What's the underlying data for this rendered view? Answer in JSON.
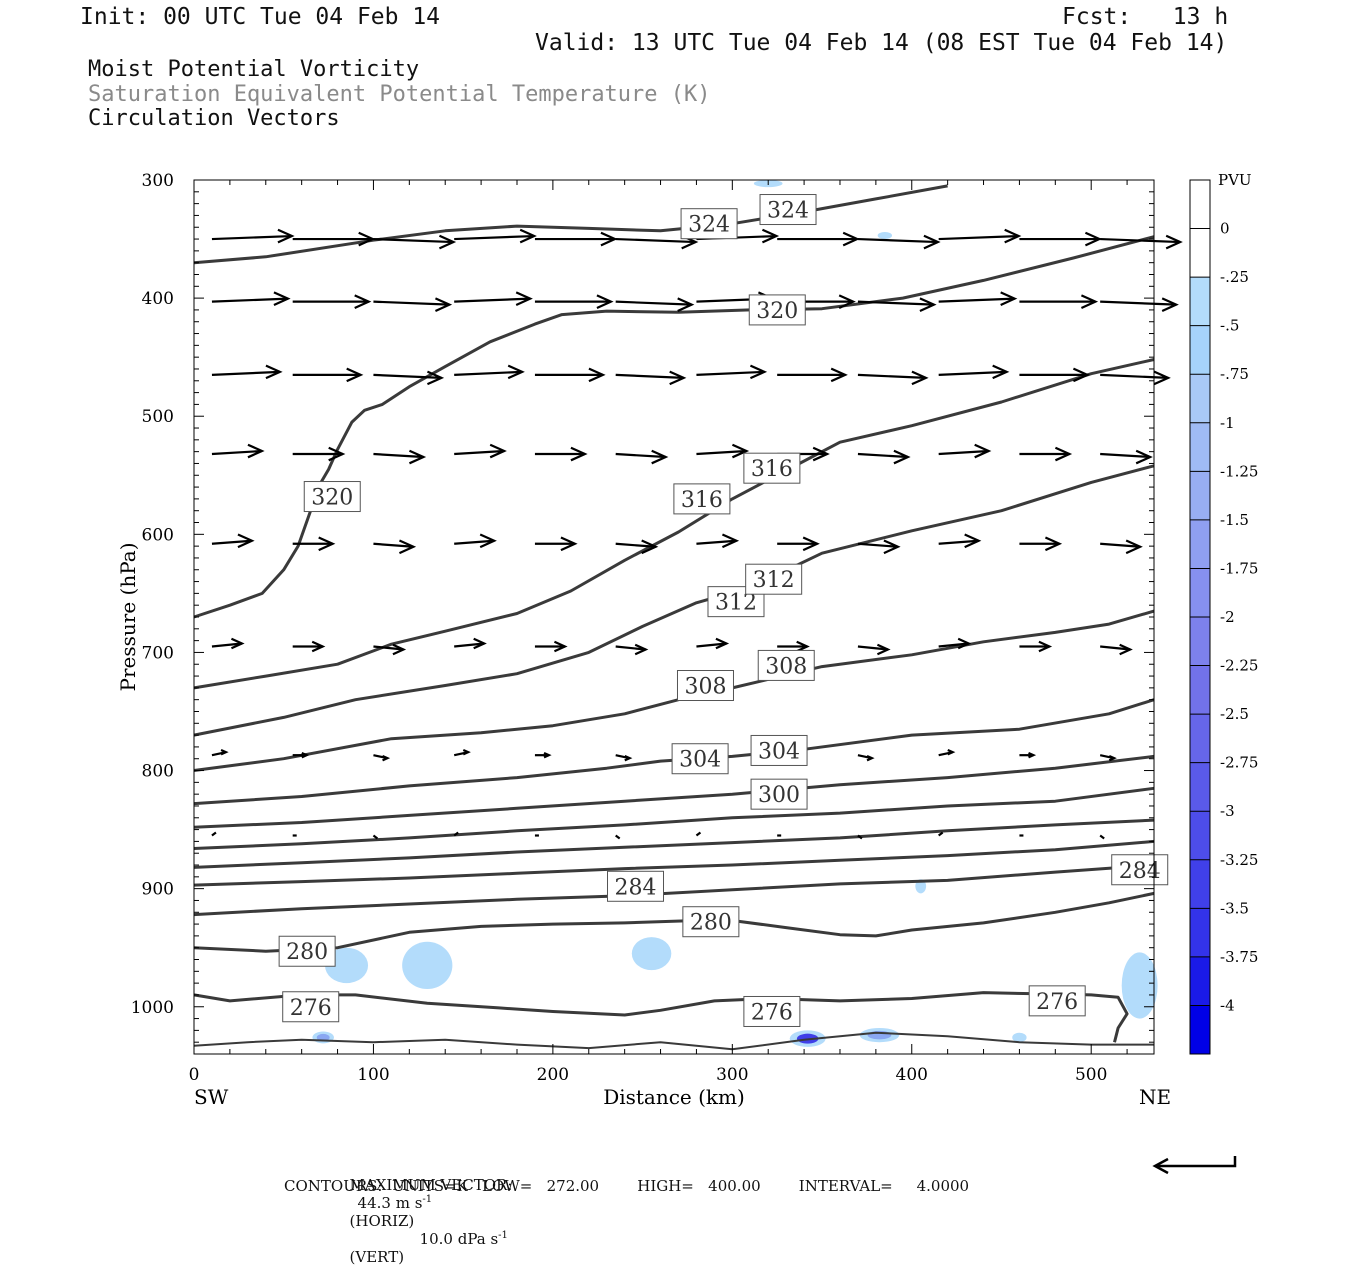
{
  "header": {
    "init": "Init: 00 UTC Tue 04 Feb 14",
    "fcst": "Fcst:   13 h",
    "valid": "Valid: 13 UTC Tue 04 Feb 14 (08 EST Tue 04 Feb 14)"
  },
  "titles": {
    "line1": "Moist Potential Vorticity",
    "line2": "Saturation Equivalent Potential Temperature (K)",
    "line3": "Circulation Vectors"
  },
  "colors": {
    "contour": "#3a3a3a",
    "pv_light": "#b3dcfb",
    "pv_mid": "#8aa7f2",
    "pv_dark": "#3f3fe8",
    "vector": "#000000"
  },
  "footer": {
    "max_vector_label": "MAXIMUM VECTOR:",
    "max_vector_horiz": "44.3 m s",
    "horiz_tag": "(HORIZ)",
    "max_vector_vert": "10.0 dPa s",
    "vert_tag": "(VERT)",
    "exp": "-1",
    "contours_line": "CONTOURS:  UNITS=K   LOW=   272.00        HIGH=   400.00        INTERVAL=     4.0000"
  },
  "chart_data": {
    "type": "cross-section",
    "xlabel": "Distance (km)",
    "ylabel": "Pressure (hPa)",
    "xlim": [
      0,
      535
    ],
    "ylim": [
      1040,
      300
    ],
    "x_ticks": [
      0,
      100,
      200,
      300,
      400,
      500
    ],
    "y_ticks": [
      300,
      400,
      500,
      600,
      700,
      800,
      900,
      1000
    ],
    "x_end_labels": [
      "SW",
      "NE"
    ],
    "colorbar": {
      "unit": "PVU",
      "labels": [
        "0",
        "-.25",
        "-.5",
        "-.75",
        "-1",
        "-1.25",
        "-1.5",
        "-1.75",
        "-2",
        "-2.25",
        "-2.5",
        "-2.75",
        "-3",
        "-3.25",
        "-3.5",
        "-3.75",
        "-4"
      ],
      "colors": [
        "#ffffff",
        "#ffffff",
        "#b3dcfb",
        "#a6d3fb",
        "#a9c9f7",
        "#9fbbf5",
        "#98aef3",
        "#8f9ff1",
        "#8690ef",
        "#7d81ec",
        "#7272ea",
        "#6666ea",
        "#5a5aea",
        "#4d4dea",
        "#4040ea",
        "#3333ea",
        "#1a1ae8",
        "#0000e6"
      ]
    },
    "contours": [
      {
        "level": "324",
        "points": [
          [
            0,
            370
          ],
          [
            40,
            365
          ],
          [
            100,
            351
          ],
          [
            140,
            343
          ],
          [
            180,
            339
          ],
          [
            220,
            341
          ],
          [
            260,
            343
          ],
          [
            300,
            337
          ],
          [
            340,
            327
          ],
          [
            380,
            316
          ],
          [
            420,
            305
          ]
        ],
        "labels": [
          [
            272,
            337
          ],
          [
            316,
            325
          ]
        ]
      },
      {
        "level": "320",
        "points": [
          [
            0,
            670
          ],
          [
            20,
            660
          ],
          [
            38,
            650
          ],
          [
            50,
            630
          ],
          [
            58,
            610
          ],
          [
            65,
            580
          ],
          [
            70,
            558
          ],
          [
            75,
            545
          ],
          [
            80,
            528
          ],
          [
            88,
            505
          ],
          [
            95,
            495
          ],
          [
            105,
            490
          ],
          [
            120,
            475
          ],
          [
            140,
            458
          ],
          [
            165,
            437
          ],
          [
            190,
            422
          ],
          [
            205,
            414
          ],
          [
            230,
            411
          ],
          [
            270,
            412
          ],
          [
            310,
            410
          ],
          [
            350,
            409
          ],
          [
            395,
            400
          ],
          [
            440,
            385
          ],
          [
            490,
            366
          ],
          [
            535,
            348
          ]
        ],
        "labels": [
          [
            62,
            568
          ],
          [
            310,
            410
          ]
        ]
      },
      {
        "level": "316",
        "points": [
          [
            0,
            730
          ],
          [
            40,
            720
          ],
          [
            80,
            710
          ],
          [
            110,
            693
          ],
          [
            140,
            682
          ],
          [
            180,
            667
          ],
          [
            210,
            648
          ],
          [
            240,
            622
          ],
          [
            270,
            598
          ],
          [
            300,
            570
          ],
          [
            330,
            546
          ],
          [
            360,
            522
          ],
          [
            400,
            508
          ],
          [
            450,
            488
          ],
          [
            500,
            464
          ],
          [
            535,
            452
          ]
        ],
        "labels": [
          [
            268,
            570
          ],
          [
            307,
            544
          ]
        ]
      },
      {
        "level": "312",
        "points": [
          [
            0,
            770
          ],
          [
            50,
            755
          ],
          [
            90,
            740
          ],
          [
            140,
            728
          ],
          [
            180,
            718
          ],
          [
            220,
            700
          ],
          [
            250,
            678
          ],
          [
            280,
            658
          ],
          [
            310,
            645
          ],
          [
            350,
            616
          ],
          [
            400,
            597
          ],
          [
            450,
            580
          ],
          [
            500,
            556
          ],
          [
            535,
            542
          ]
        ],
        "labels": [
          [
            287,
            657
          ],
          [
            308,
            638
          ]
        ]
      },
      {
        "level": "308",
        "points": [
          [
            0,
            800
          ],
          [
            50,
            790
          ],
          [
            110,
            773
          ],
          [
            160,
            768
          ],
          [
            200,
            762
          ],
          [
            240,
            752
          ],
          [
            270,
            740
          ],
          [
            300,
            730
          ],
          [
            350,
            712
          ],
          [
            400,
            702
          ],
          [
            440,
            691
          ],
          [
            480,
            683
          ],
          [
            510,
            676
          ],
          [
            535,
            665
          ]
        ],
        "labels": [
          [
            270,
            728
          ],
          [
            315,
            711
          ]
        ]
      },
      {
        "level": "304",
        "points": [
          [
            0,
            828
          ],
          [
            60,
            822
          ],
          [
            120,
            813
          ],
          [
            180,
            806
          ],
          [
            230,
            798
          ],
          [
            260,
            792
          ],
          [
            300,
            788
          ],
          [
            340,
            782
          ],
          [
            400,
            770
          ],
          [
            460,
            765
          ],
          [
            510,
            752
          ],
          [
            535,
            740
          ]
        ],
        "labels": [
          [
            267,
            790
          ],
          [
            311,
            783
          ]
        ]
      },
      {
        "level": "300",
        "points": [
          [
            0,
            848
          ],
          [
            60,
            844
          ],
          [
            120,
            838
          ],
          [
            180,
            832
          ],
          [
            240,
            826
          ],
          [
            300,
            820
          ],
          [
            360,
            812
          ],
          [
            420,
            806
          ],
          [
            480,
            798
          ],
          [
            535,
            788
          ]
        ],
        "labels": [
          [
            311,
            820
          ]
        ]
      },
      {
        "level": "296",
        "points": [
          [
            0,
            866
          ],
          [
            60,
            862
          ],
          [
            120,
            857
          ],
          [
            180,
            851
          ],
          [
            240,
            846
          ],
          [
            300,
            840
          ],
          [
            360,
            836
          ],
          [
            420,
            830
          ],
          [
            480,
            826
          ],
          [
            535,
            815
          ]
        ],
        "labels": []
      },
      {
        "level": "292",
        "points": [
          [
            0,
            882
          ],
          [
            60,
            878
          ],
          [
            120,
            874
          ],
          [
            180,
            869
          ],
          [
            240,
            865
          ],
          [
            300,
            861
          ],
          [
            360,
            857
          ],
          [
            420,
            851
          ],
          [
            480,
            846
          ],
          [
            535,
            842
          ]
        ],
        "labels": []
      },
      {
        "level": "288",
        "points": [
          [
            0,
            897
          ],
          [
            60,
            894
          ],
          [
            120,
            891
          ],
          [
            180,
            887
          ],
          [
            240,
            883
          ],
          [
            300,
            880
          ],
          [
            360,
            876
          ],
          [
            420,
            872
          ],
          [
            480,
            867
          ],
          [
            535,
            860
          ]
        ],
        "labels": []
      },
      {
        "level": "284",
        "points": [
          [
            0,
            922
          ],
          [
            60,
            917
          ],
          [
            120,
            913
          ],
          [
            180,
            909
          ],
          [
            240,
            906
          ],
          [
            300,
            901
          ],
          [
            360,
            896
          ],
          [
            420,
            893
          ],
          [
            480,
            886
          ],
          [
            535,
            880
          ]
        ],
        "labels": [
          [
            231,
            898
          ],
          [
            512,
            884
          ]
        ]
      },
      {
        "level": "280",
        "points": [
          [
            0,
            950
          ],
          [
            40,
            953
          ],
          [
            80,
            950
          ],
          [
            120,
            937
          ],
          [
            160,
            932
          ],
          [
            200,
            930
          ],
          [
            240,
            929
          ],
          [
            280,
            927
          ],
          [
            300,
            927
          ],
          [
            330,
            933
          ],
          [
            360,
            939
          ],
          [
            380,
            940
          ],
          [
            400,
            935
          ],
          [
            440,
            929
          ],
          [
            480,
            920
          ],
          [
            510,
            912
          ],
          [
            535,
            904
          ]
        ],
        "labels": [
          [
            48,
            953
          ],
          [
            273,
            928
          ]
        ]
      },
      {
        "level": "276",
        "points": [
          [
            0,
            990
          ],
          [
            20,
            995
          ],
          [
            60,
            990
          ],
          [
            90,
            990
          ],
          [
            130,
            997
          ],
          [
            170,
            1001
          ],
          [
            200,
            1004
          ],
          [
            240,
            1007
          ],
          [
            260,
            1003
          ],
          [
            290,
            995
          ],
          [
            320,
            993
          ],
          [
            360,
            995
          ],
          [
            400,
            993
          ],
          [
            440,
            988
          ],
          [
            470,
            989
          ],
          [
            500,
            990
          ],
          [
            515,
            992
          ],
          [
            520,
            1006
          ],
          [
            515,
            1018
          ],
          [
            513,
            1030
          ]
        ],
        "labels": [
          [
            50,
            1000
          ],
          [
            307,
            1004
          ],
          [
            466,
            995
          ]
        ]
      },
      {
        "level": "272",
        "points": [
          [
            0,
            1033
          ],
          [
            30,
            1030
          ],
          [
            60,
            1028
          ],
          [
            100,
            1030
          ],
          [
            140,
            1028
          ],
          [
            180,
            1032
          ],
          [
            220,
            1035
          ],
          [
            260,
            1030
          ],
          [
            300,
            1036
          ],
          [
            340,
            1028
          ],
          [
            380,
            1022
          ],
          [
            420,
            1025
          ],
          [
            460,
            1030
          ],
          [
            500,
            1032
          ],
          [
            535,
            1032
          ]
        ],
        "labels": []
      }
    ],
    "pv_patches": [
      {
        "x": 85,
        "p": 965,
        "rx": 12,
        "rp": 15,
        "shade": "light"
      },
      {
        "x": 130,
        "p": 965,
        "rx": 14,
        "rp": 20,
        "shade": "light"
      },
      {
        "x": 255,
        "p": 955,
        "rx": 11,
        "rp": 14,
        "shade": "light"
      },
      {
        "x": 342,
        "p": 1027,
        "rx": 10,
        "rp": 7,
        "shade": "dark"
      },
      {
        "x": 382,
        "p": 1024,
        "rx": 11,
        "rp": 6,
        "shade": "mid"
      },
      {
        "x": 527,
        "p": 982,
        "rx": 10,
        "rp": 28,
        "shade": "light"
      },
      {
        "x": 460,
        "p": 1026,
        "rx": 4,
        "rp": 4,
        "shade": "light"
      },
      {
        "x": 72,
        "p": 1026,
        "rx": 6,
        "rp": 5,
        "shade": "mid"
      },
      {
        "x": 405,
        "p": 898,
        "rx": 3,
        "rp": 6,
        "shade": "light"
      },
      {
        "x": 320,
        "p": 303,
        "rx": 8,
        "rp": 3,
        "shade": "light"
      },
      {
        "x": 385,
        "p": 347,
        "rx": 4,
        "rp": 3,
        "shade": "light"
      }
    ],
    "vector_rows": [
      {
        "p": 350,
        "u": 40,
        "dp": 0
      },
      {
        "p": 403,
        "u": 38,
        "dp": 0
      },
      {
        "p": 465,
        "u": 34,
        "dp": 0
      },
      {
        "p": 532,
        "u": 25,
        "dp": 0
      },
      {
        "p": 608,
        "u": 20,
        "dp": 0
      },
      {
        "p": 695,
        "u": 15,
        "dp": 0
      },
      {
        "p": 787,
        "u": 7,
        "dp": 0
      },
      {
        "p": 855,
        "u": 2,
        "dp": 0
      }
    ],
    "vector_columns": [
      10,
      55,
      100,
      145,
      190,
      235,
      280,
      325,
      370,
      415,
      460,
      505
    ],
    "axis_end_labels": {
      "left": "SW",
      "right": "NE"
    }
  }
}
